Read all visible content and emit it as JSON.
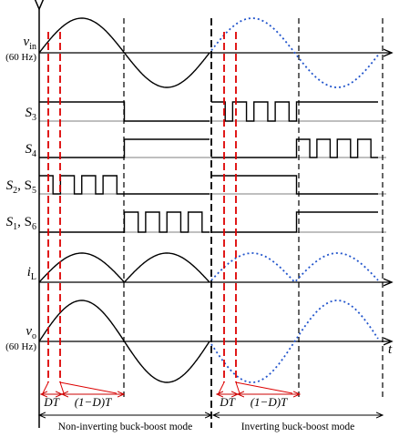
{
  "signals": [
    {
      "label": [
        "v",
        "in"
      ],
      "note": "(60 Hz)"
    },
    {
      "label": [
        "S",
        "3"
      ]
    },
    {
      "label": [
        "S",
        "4"
      ]
    },
    {
      "label": [
        "S",
        "2",
        ", S",
        "5"
      ]
    },
    {
      "label": [
        "S",
        "1",
        ", S",
        "6"
      ]
    },
    {
      "label": [
        "i",
        "L"
      ]
    },
    {
      "label": [
        "v",
        "o"
      ],
      "note": "(60 Hz)"
    }
  ],
  "time_label": "t",
  "intervals": [
    {
      "duty": "DT",
      "rest": "(1−D)T"
    },
    {
      "duty": "DT",
      "rest": "(1−D)T"
    }
  ],
  "modes": [
    "Non-inverting buck-boost mode",
    "Inverting buck-boost mode"
  ]
}
